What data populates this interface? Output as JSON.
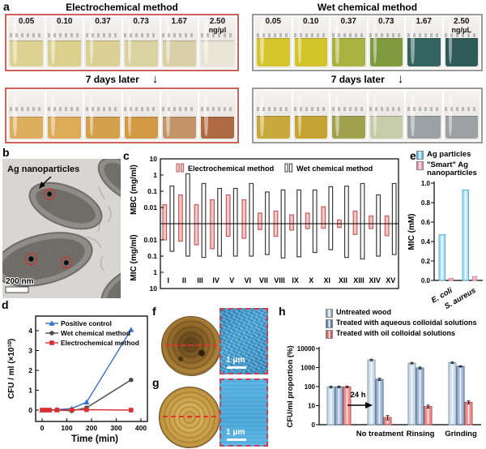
{
  "panels": {
    "a": {
      "label": "a",
      "seven_days": "7 days later",
      "arrow_down": "↓",
      "groups": [
        {
          "title": "Electrochemical method",
          "frame_color": "#d0605a",
          "labels": [
            "0.05",
            "0.10",
            "0.37",
            "0.73",
            "1.67",
            "2.50"
          ],
          "unit": "ng/μl",
          "fresh_level": 0.5,
          "aged_level": 0.42,
          "fresh_colors": [
            "#ded292",
            "#dcd08e",
            "#dcd194",
            "#dbd2a2",
            "#d9cfa8",
            "#e9e5d6"
          ],
          "aged_colors": [
            "#dcae5e",
            "#dcac58",
            "#d4a04e",
            "#d29a44",
            "#c29468",
            "#b06a42"
          ]
        },
        {
          "title": "Wet chemical method",
          "frame_color": "#9b9b9b",
          "labels": [
            "0.05",
            "0.10",
            "0.37",
            "0.73",
            "1.67",
            "2.50"
          ],
          "unit": "ng/μL",
          "fresh_level": 0.54,
          "aged_level": 0.45,
          "fresh_colors": [
            "#d6c62e",
            "#d2c42a",
            "#a9b23e",
            "#7e9b40",
            "#33635f",
            "#2e5b59"
          ],
          "aged_colors": [
            "#c9a93c",
            "#c5a434",
            "#a0a14c",
            "#c6cca9",
            "#9aa0a3",
            "#9da1a2"
          ]
        }
      ]
    },
    "b": {
      "label": "b",
      "annotation": "Ag nanoparticles",
      "scale_bar": "200 nm"
    },
    "c": {
      "label": "c"
    },
    "d": {
      "label": "d"
    },
    "e": {
      "label": "e"
    },
    "f": {
      "label": "f",
      "scale_bar": "1 μm"
    },
    "g": {
      "label": "g",
      "scale_bar": "1 μm"
    },
    "h": {
      "label": "h"
    }
  },
  "chart_data": [
    {
      "panel": "c",
      "type": "bar",
      "orientation": "diverging-log",
      "ylabel_top": "MBC (mg/ml)",
      "ylabel_bottom": "MIC (mg/ml)",
      "yticks_top": [
        "10",
        "1",
        "0.1",
        "0.01"
      ],
      "yticks_bottom": [
        "0.01",
        "0.1",
        "1",
        "10"
      ],
      "center_value": 0.001,
      "categories": [
        "I",
        "II",
        "III",
        "IV",
        "V",
        "VI",
        "VII",
        "VIII",
        "IX",
        "X",
        "XI",
        "XII",
        "XIII",
        "XIV",
        "XV"
      ],
      "series": [
        {
          "name": "Electrochemical method",
          "fill": "#f5c6c6",
          "edge": "#c65b5b",
          "mbc": [
            0.015,
            0.06,
            0.015,
            0.03,
            0.06,
            0.03,
            0.0045,
            0.006,
            0.0035,
            0.0045,
            0.011,
            0.0017,
            0.006,
            0.003,
            0.003
          ],
          "mic": [
            0.01,
            0.012,
            0.02,
            0.035,
            0.006,
            0.008,
            0.0023,
            0.006,
            0.0025,
            0.002,
            0.0019,
            0.0017,
            0.0046,
            0.002,
            0.0055
          ]
        },
        {
          "name": "Wet chemical method",
          "fill": "#ffffff",
          "edge": "#3c3c3c",
          "mbc": [
            0.21,
            1.2,
            0.3,
            0.15,
            0.15,
            0.3,
            0.09,
            0.12,
            0.12,
            0.12,
            0.19,
            0.21,
            0.3,
            0.06,
            0.3
          ],
          "mic": [
            0.05,
            0.1,
            0.12,
            0.1,
            0.1,
            0.1,
            0.08,
            0.13,
            0.11,
            0.06,
            0.04,
            0.12,
            0.15,
            0.1,
            0.08
          ]
        }
      ]
    },
    {
      "panel": "d",
      "type": "line",
      "xlabel": "Time (min)",
      "ylabel": "CFU / ml (×10¹⁰)",
      "xticks": [
        0,
        100,
        200,
        300,
        400
      ],
      "yticks": [
        0,
        1,
        2,
        3,
        4
      ],
      "x": [
        0,
        15,
        30,
        60,
        120,
        180,
        360
      ],
      "series": [
        {
          "name": "Positive control",
          "color": "#3272c8",
          "marker": "triangle",
          "values": [
            0,
            0,
            0.01,
            0.02,
            0.08,
            0.4,
            4.05
          ]
        },
        {
          "name": "Wet chemical method",
          "color": "#4d4d4d",
          "marker": "circle",
          "values": [
            0,
            0,
            0,
            0.01,
            -0.04,
            0.12,
            1.52
          ]
        },
        {
          "name": "Electrochemical method",
          "color": "#d93030",
          "marker": "square",
          "values": [
            0,
            0,
            0,
            0,
            0.01,
            0.02,
            0
          ]
        }
      ]
    },
    {
      "panel": "e",
      "type": "bar",
      "ylabel": "MIC (mM)",
      "ylim": [
        0,
        1.0
      ],
      "yticks": [
        "0.0",
        "0.2",
        "0.4",
        "0.6",
        "0.8",
        "1.0"
      ],
      "categories": [
        "E. coli",
        "S. aureus"
      ],
      "series": [
        {
          "name": "Ag particles",
          "fill": "#abdef2",
          "edge": "#5ab4d8",
          "values": [
            0.47,
            0.93
          ]
        },
        {
          "name": "\"Smart\" Ag nanoparticles",
          "fill": "#f7bcc8",
          "edge": "#e58298",
          "values": [
            0.02,
            0.04
          ]
        }
      ]
    },
    {
      "panel": "h",
      "type": "bar",
      "scale": "log",
      "ylabel": "CFU/ml proportion (%)",
      "yticks": [
        "0",
        "10",
        "100",
        "1000",
        "10000"
      ],
      "categories": [
        "",
        "No treatment",
        "Rinsing",
        "Grinding"
      ],
      "annotation": "24 h",
      "series": [
        {
          "name": "Untreated wood",
          "fill": "#ccdde8",
          "edge": "#7c9ab2",
          "values": [
            95,
            2500,
            1700,
            1800
          ],
          "errors": [
            10,
            230,
            160,
            150
          ]
        },
        {
          "name": "Treated with aqueous colloidal solutions",
          "fill": "#a3b8d4",
          "edge": "#4e6e99",
          "values": [
            97,
            240,
            950,
            1150
          ],
          "errors": [
            10,
            30,
            110,
            90
          ]
        },
        {
          "name": "Treated with oil colloidal solutions",
          "fill": "#ec9090",
          "edge": "#bf5252",
          "values": [
            97,
            2.4,
            9,
            15
          ],
          "errors": [
            10,
            0.6,
            1.6,
            2.5
          ]
        }
      ]
    }
  ]
}
